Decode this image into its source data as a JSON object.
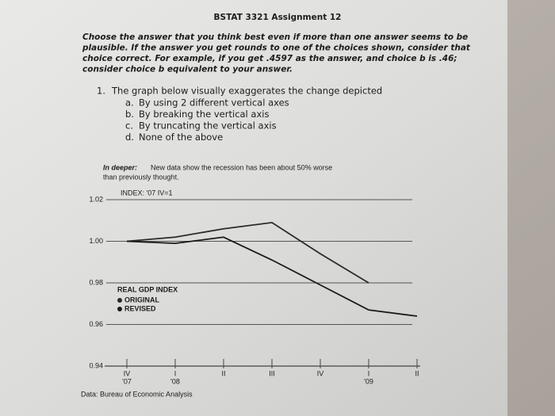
{
  "header": {
    "title": "BSTAT 3321 Assignment 12"
  },
  "instructions": {
    "lines": [
      "Choose the answer that you think best even if more than one answer seems to be",
      "plausible. If the answer you get rounds to one of the choices shown, consider that",
      "choice correct. For example, if you get .4597 as the answer, and choice b is .46;",
      "consider choice b equivalent to your answer."
    ]
  },
  "question": {
    "number": "1.",
    "text": "The graph below visually exaggerates the change depicted",
    "options": [
      {
        "letter": "a.",
        "text": "By using 2 different vertical axes"
      },
      {
        "letter": "b.",
        "text": "By breaking the vertical axis"
      },
      {
        "letter": "c.",
        "text": "By truncating the vertical axis"
      },
      {
        "letter": "d.",
        "text": "None of the above"
      }
    ]
  },
  "chart_data": {
    "type": "line",
    "title": "In deeper:",
    "subtitle_lines": [
      "New data show the recession has been about 50% worse",
      "than previously thought."
    ],
    "annotation": "INDEX: '07 IV=1",
    "legend_title": "REAL GDP INDEX",
    "source": "Data: Bureau of Economic Analysis",
    "categories": [
      "IV",
      "I",
      "II",
      "III",
      "IV",
      "I",
      "II"
    ],
    "year_labels": [
      "'07",
      "'08",
      null,
      null,
      null,
      "'09",
      null
    ],
    "series": [
      {
        "name": "ORIGINAL",
        "color": "#2a2a2a",
        "values": [
          1.0,
          1.002,
          1.006,
          1.009,
          0.994,
          0.98,
          null
        ]
      },
      {
        "name": "REVISED",
        "color": "#1a1a1a",
        "values": [
          1.0,
          0.999,
          1.002,
          0.991,
          0.979,
          0.967,
          0.964
        ]
      }
    ],
    "ylim": [
      0.94,
      1.02
    ],
    "yticks": [
      0.94,
      0.96,
      0.98,
      {
        "value": 1,
        "label": "1.00"
      },
      1.02
    ],
    "grid": true
  }
}
